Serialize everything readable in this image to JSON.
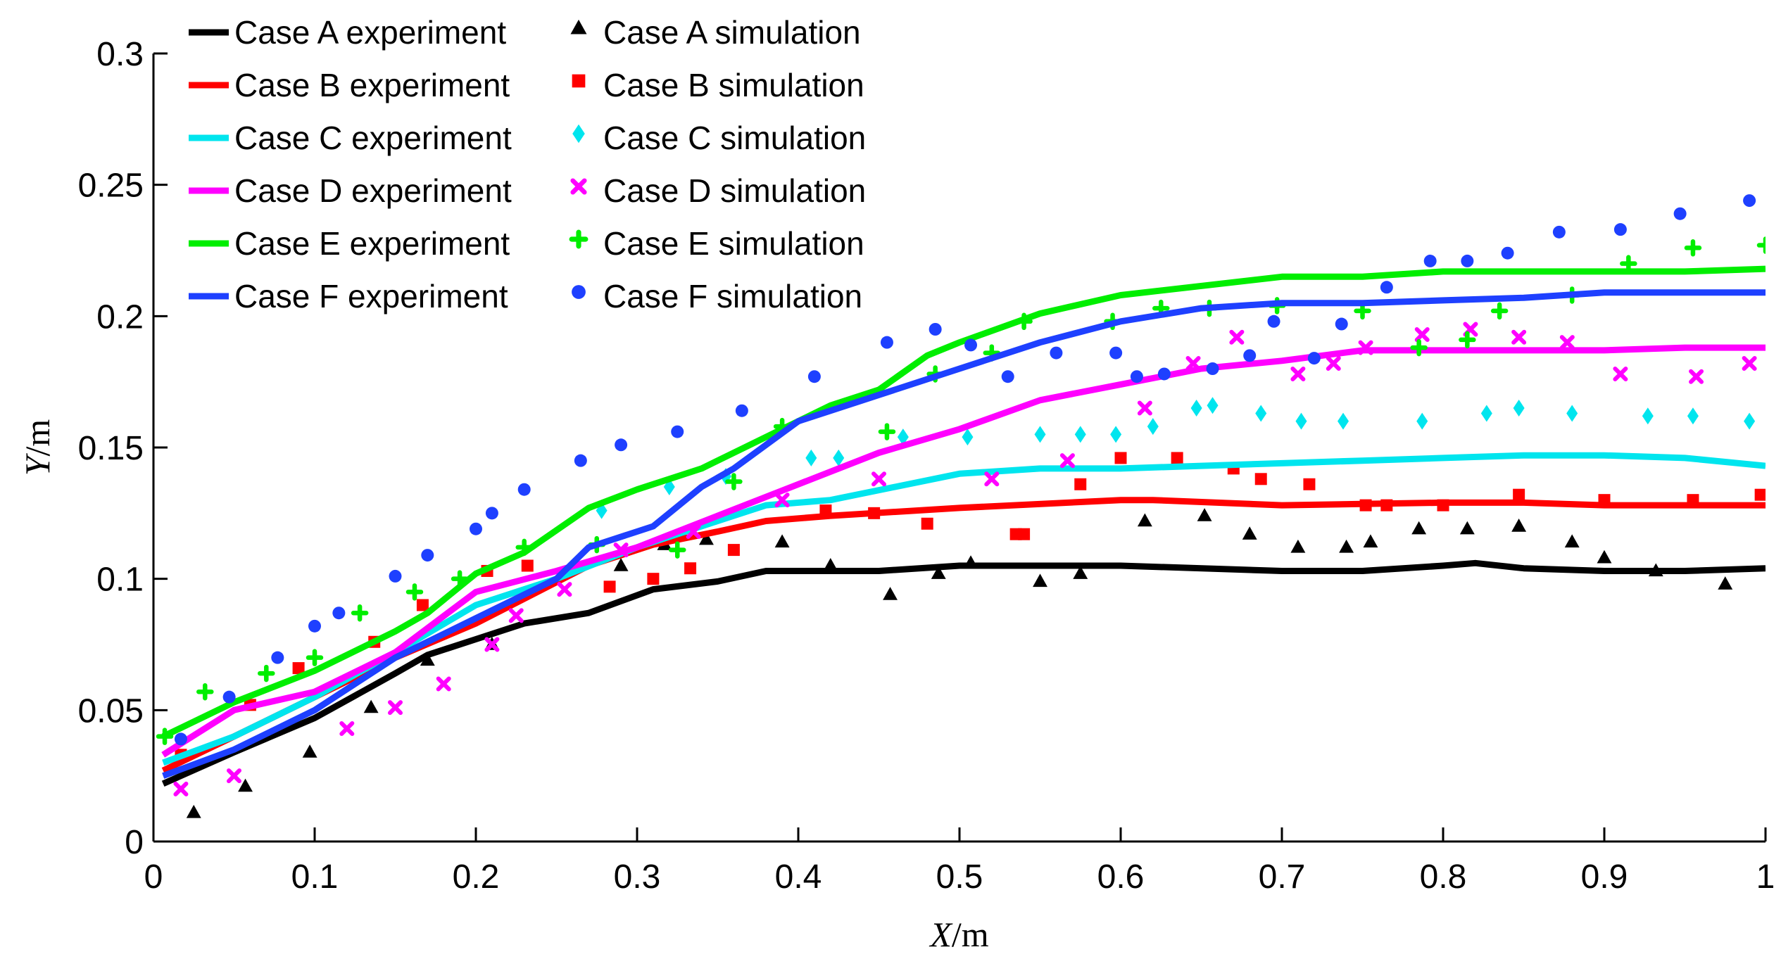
{
  "chart_data": {
    "type": "line",
    "title": "",
    "xlabel_var": "X",
    "xlabel_unit": "/m",
    "ylabel_var": "Y",
    "ylabel_unit": "/m",
    "xlim": [
      0,
      1
    ],
    "ylim": [
      0,
      0.3
    ],
    "xticks": [
      0,
      0.1,
      0.2,
      0.3,
      0.4,
      0.5,
      0.6,
      0.7,
      0.8,
      0.9,
      1
    ],
    "yticks": [
      0,
      0.05,
      0.1,
      0.15,
      0.2,
      0.25,
      0.3
    ],
    "xtick_labels": [
      "0",
      "0.1",
      "0.2",
      "0.3",
      "0.4",
      "0.5",
      "0.6",
      "0.7",
      "0.8",
      "0.9",
      "1"
    ],
    "ytick_labels": [
      "0",
      "0.05",
      "0.1",
      "0.15",
      "0.2",
      "0.25",
      "0.3"
    ],
    "grid": false,
    "legend_position": "top-left",
    "series": [
      {
        "name": "Case A experiment",
        "kind": "line",
        "color": "#000000",
        "x": [
          0.006,
          0.05,
          0.1,
          0.15,
          0.17,
          0.2,
          0.23,
          0.27,
          0.31,
          0.35,
          0.38,
          0.45,
          0.5,
          0.6,
          0.7,
          0.75,
          0.8,
          0.82,
          0.85,
          0.9,
          0.95,
          1.0
        ],
        "y": [
          0.022,
          0.034,
          0.047,
          0.064,
          0.071,
          0.077,
          0.083,
          0.087,
          0.096,
          0.099,
          0.103,
          0.103,
          0.105,
          0.105,
          0.103,
          0.103,
          0.105,
          0.106,
          0.104,
          0.103,
          0.103,
          0.104
        ]
      },
      {
        "name": "Case A simulation",
        "kind": "marker",
        "marker": "triangle",
        "color": "#000000",
        "x": [
          0.025,
          0.057,
          0.097,
          0.135,
          0.17,
          0.21,
          0.29,
          0.317,
          0.343,
          0.39,
          0.42,
          0.457,
          0.487,
          0.507,
          0.55,
          0.575,
          0.615,
          0.652,
          0.68,
          0.71,
          0.74,
          0.755,
          0.785,
          0.815,
          0.847,
          0.88,
          0.9,
          0.932,
          0.975
        ],
        "y": [
          0.011,
          0.021,
          0.034,
          0.051,
          0.069,
          0.075,
          0.105,
          0.113,
          0.115,
          0.114,
          0.105,
          0.094,
          0.102,
          0.106,
          0.099,
          0.102,
          0.122,
          0.124,
          0.117,
          0.112,
          0.112,
          0.114,
          0.119,
          0.119,
          0.12,
          0.114,
          0.108,
          0.103,
          0.098
        ]
      },
      {
        "name": "Case B experiment",
        "kind": "line",
        "color": "#ff0000",
        "x": [
          0.006,
          0.05,
          0.1,
          0.15,
          0.2,
          0.27,
          0.31,
          0.35,
          0.38,
          0.42,
          0.5,
          0.6,
          0.62,
          0.7,
          0.8,
          0.85,
          0.9,
          1.0
        ],
        "y": [
          0.027,
          0.04,
          0.055,
          0.07,
          0.083,
          0.105,
          0.113,
          0.118,
          0.122,
          0.124,
          0.127,
          0.13,
          0.13,
          0.128,
          0.129,
          0.129,
          0.128,
          0.128
        ]
      },
      {
        "name": "Case B simulation",
        "kind": "marker",
        "marker": "square",
        "color": "#ff0000",
        "x": [
          0.017,
          0.06,
          0.09,
          0.137,
          0.167,
          0.207,
          0.232,
          0.283,
          0.31,
          0.333,
          0.36,
          0.417,
          0.447,
          0.48,
          0.535,
          0.54,
          0.575,
          0.6,
          0.635,
          0.67,
          0.687,
          0.717,
          0.752,
          0.765,
          0.8,
          0.847,
          0.9,
          0.955,
          0.997
        ],
        "y": [
          0.033,
          0.052,
          0.066,
          0.076,
          0.09,
          0.103,
          0.105,
          0.097,
          0.1,
          0.104,
          0.111,
          0.126,
          0.125,
          0.121,
          0.117,
          0.117,
          0.136,
          0.146,
          0.146,
          0.142,
          0.138,
          0.136,
          0.128,
          0.128,
          0.128,
          0.132,
          0.13,
          0.13,
          0.132
        ]
      },
      {
        "name": "Case C experiment",
        "kind": "line",
        "color": "#00e5ee",
        "x": [
          0.006,
          0.05,
          0.1,
          0.15,
          0.2,
          0.25,
          0.3,
          0.35,
          0.38,
          0.42,
          0.5,
          0.55,
          0.6,
          0.65,
          0.7,
          0.75,
          0.8,
          0.85,
          0.9,
          0.95,
          1.0
        ],
        "y": [
          0.03,
          0.04,
          0.055,
          0.072,
          0.09,
          0.1,
          0.112,
          0.122,
          0.128,
          0.13,
          0.14,
          0.142,
          0.142,
          0.143,
          0.144,
          0.145,
          0.146,
          0.147,
          0.147,
          0.146,
          0.143
        ]
      },
      {
        "name": "Case C simulation",
        "kind": "marker",
        "marker": "diamond",
        "color": "#00e5ee",
        "x": [
          0.278,
          0.32,
          0.355,
          0.408,
          0.425,
          0.465,
          0.505,
          0.55,
          0.575,
          0.597,
          0.62,
          0.647,
          0.657,
          0.687,
          0.712,
          0.738,
          0.787,
          0.827,
          0.847,
          0.88,
          0.927,
          0.955,
          0.99
        ],
        "y": [
          0.126,
          0.135,
          0.139,
          0.146,
          0.146,
          0.154,
          0.154,
          0.155,
          0.155,
          0.155,
          0.158,
          0.165,
          0.166,
          0.163,
          0.16,
          0.16,
          0.16,
          0.163,
          0.165,
          0.163,
          0.162,
          0.162,
          0.16
        ]
      },
      {
        "name": "Case D experiment",
        "kind": "line",
        "color": "#ff00ff",
        "x": [
          0.006,
          0.05,
          0.1,
          0.15,
          0.2,
          0.25,
          0.3,
          0.35,
          0.4,
          0.45,
          0.5,
          0.55,
          0.6,
          0.65,
          0.7,
          0.75,
          0.8,
          0.85,
          0.9,
          0.95,
          1.0
        ],
        "y": [
          0.033,
          0.05,
          0.057,
          0.072,
          0.095,
          0.103,
          0.112,
          0.124,
          0.136,
          0.148,
          0.157,
          0.168,
          0.174,
          0.18,
          0.183,
          0.187,
          0.187,
          0.187,
          0.187,
          0.188,
          0.188
        ]
      },
      {
        "name": "Case D simulation",
        "kind": "marker",
        "marker": "x",
        "color": "#ff00ff",
        "x": [
          0.017,
          0.05,
          0.12,
          0.15,
          0.18,
          0.21,
          0.225,
          0.255,
          0.29,
          0.335,
          0.39,
          0.45,
          0.52,
          0.567,
          0.615,
          0.645,
          0.672,
          0.71,
          0.732,
          0.752,
          0.787,
          0.817,
          0.847,
          0.877,
          0.91,
          0.957,
          0.99
        ],
        "y": [
          0.02,
          0.025,
          0.043,
          0.051,
          0.06,
          0.075,
          0.086,
          0.096,
          0.111,
          0.118,
          0.13,
          0.138,
          0.138,
          0.145,
          0.165,
          0.182,
          0.192,
          0.178,
          0.182,
          0.188,
          0.193,
          0.195,
          0.192,
          0.19,
          0.178,
          0.177,
          0.182
        ]
      },
      {
        "name": "Case E experiment",
        "kind": "line",
        "color": "#00ee00",
        "x": [
          0.006,
          0.05,
          0.1,
          0.15,
          0.17,
          0.2,
          0.23,
          0.27,
          0.3,
          0.34,
          0.4,
          0.42,
          0.45,
          0.48,
          0.5,
          0.55,
          0.6,
          0.7,
          0.75,
          0.8,
          0.85,
          0.9,
          0.95,
          1.0
        ],
        "y": [
          0.04,
          0.053,
          0.065,
          0.08,
          0.087,
          0.102,
          0.11,
          0.127,
          0.134,
          0.142,
          0.16,
          0.166,
          0.172,
          0.185,
          0.19,
          0.201,
          0.208,
          0.215,
          0.215,
          0.217,
          0.217,
          0.217,
          0.217,
          0.218
        ]
      },
      {
        "name": "Case E simulation",
        "kind": "marker",
        "marker": "plus",
        "color": "#00ee00",
        "x": [
          0.007,
          0.032,
          0.07,
          0.1,
          0.128,
          0.162,
          0.19,
          0.23,
          0.275,
          0.325,
          0.36,
          0.39,
          0.455,
          0.485,
          0.52,
          0.54,
          0.595,
          0.625,
          0.655,
          0.697,
          0.75,
          0.785,
          0.815,
          0.835,
          0.88,
          0.915,
          0.955,
          1.0
        ],
        "y": [
          0.04,
          0.057,
          0.064,
          0.07,
          0.087,
          0.095,
          0.1,
          0.112,
          0.113,
          0.111,
          0.137,
          0.158,
          0.156,
          0.178,
          0.186,
          0.198,
          0.198,
          0.203,
          0.203,
          0.204,
          0.202,
          0.188,
          0.191,
          0.202,
          0.208,
          0.22,
          0.226,
          0.227
        ]
      },
      {
        "name": "Case F experiment",
        "kind": "line",
        "color": "#1e40ff",
        "x": [
          0.006,
          0.05,
          0.1,
          0.15,
          0.2,
          0.25,
          0.27,
          0.31,
          0.34,
          0.36,
          0.4,
          0.45,
          0.5,
          0.55,
          0.6,
          0.65,
          0.7,
          0.75,
          0.8,
          0.85,
          0.9,
          0.95,
          1.0
        ],
        "y": [
          0.025,
          0.035,
          0.05,
          0.07,
          0.085,
          0.1,
          0.112,
          0.12,
          0.135,
          0.142,
          0.16,
          0.17,
          0.18,
          0.19,
          0.198,
          0.203,
          0.205,
          0.205,
          0.206,
          0.207,
          0.209,
          0.209,
          0.209
        ]
      },
      {
        "name": "Case F simulation",
        "kind": "marker",
        "marker": "circle",
        "color": "#1e40ff",
        "x": [
          0.017,
          0.047,
          0.077,
          0.1,
          0.115,
          0.15,
          0.17,
          0.2,
          0.21,
          0.23,
          0.265,
          0.29,
          0.325,
          0.365,
          0.41,
          0.455,
          0.485,
          0.507,
          0.53,
          0.56,
          0.597,
          0.61,
          0.627,
          0.657,
          0.68,
          0.695,
          0.72,
          0.737,
          0.765,
          0.792,
          0.815,
          0.84,
          0.872,
          0.91,
          0.947,
          0.99
        ],
        "y": [
          0.039,
          0.055,
          0.07,
          0.082,
          0.087,
          0.101,
          0.109,
          0.119,
          0.125,
          0.134,
          0.145,
          0.151,
          0.156,
          0.164,
          0.177,
          0.19,
          0.195,
          0.189,
          0.177,
          0.186,
          0.186,
          0.177,
          0.178,
          0.18,
          0.185,
          0.198,
          0.184,
          0.197,
          0.211,
          0.221,
          0.221,
          0.224,
          0.232,
          0.233,
          0.239,
          0.244
        ]
      }
    ]
  }
}
